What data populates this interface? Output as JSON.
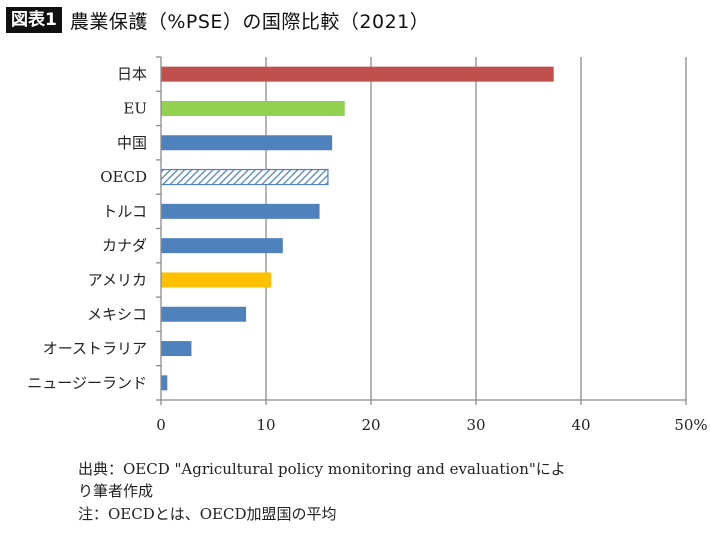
{
  "title": {
    "badge": "図表1",
    "text": "農業保護（%PSE）の国際比較（2021）"
  },
  "notes": {
    "source_line1": "出典：OECD \"Agricultural policy monitoring and evaluation\"によ",
    "source_line2": "り筆者作成",
    "note": "注：OECDとは、OECD加盟国の平均"
  },
  "chart_data": {
    "type": "bar",
    "orientation": "horizontal",
    "title": "農業保護（%PSE）の国際比較（2021）",
    "xlabel": "",
    "ylabel": "",
    "xlim": [
      0,
      50
    ],
    "xticks": [
      "0",
      "10",
      "20",
      "30",
      "40",
      "50%"
    ],
    "xtick_values": [
      0,
      10,
      20,
      30,
      40,
      50
    ],
    "grid": true,
    "categories": [
      "日本",
      "EU",
      "中国",
      "OECD",
      "トルコ",
      "カナダ",
      "アメリカ",
      "メキシコ",
      "オーストラリア",
      "ニュージーランド"
    ],
    "values": [
      37.4,
      17.5,
      16.3,
      15.9,
      15.1,
      11.6,
      10.5,
      8.1,
      2.9,
      0.6
    ],
    "colors": [
      "#c0504d",
      "#92d050",
      "#4f81bd",
      "hatch",
      "#4f81bd",
      "#4f81bd",
      "#ffc000",
      "#4f81bd",
      "#4f81bd",
      "#4f81bd"
    ],
    "hatch_color": "#4f81bd"
  }
}
